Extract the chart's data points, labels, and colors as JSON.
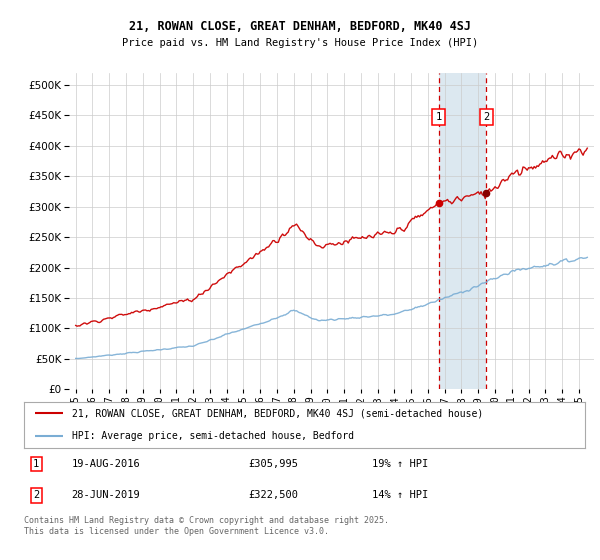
{
  "title1": "21, ROWAN CLOSE, GREAT DENHAM, BEDFORD, MK40 4SJ",
  "title2": "Price paid vs. HM Land Registry's House Price Index (HPI)",
  "legend_label1": "21, ROWAN CLOSE, GREAT DENHAM, BEDFORD, MK40 4SJ (semi-detached house)",
  "legend_label2": "HPI: Average price, semi-detached house, Bedford",
  "sale1_label": "1",
  "sale1_date": "19-AUG-2016",
  "sale1_price": "£305,995",
  "sale1_hpi": "19% ↑ HPI",
  "sale2_label": "2",
  "sale2_date": "28-JUN-2019",
  "sale2_price": "£322,500",
  "sale2_hpi": "14% ↑ HPI",
  "footnote": "Contains HM Land Registry data © Crown copyright and database right 2025.\nThis data is licensed under the Open Government Licence v3.0.",
  "sale1_year": 2016.63,
  "sale1_value": 305995,
  "sale2_year": 2019.49,
  "sale2_value": 322500,
  "color_red": "#cc0000",
  "color_blue": "#7aadd4",
  "color_dashed": "#cc0000",
  "color_shaded": "#dce8f0",
  "bg_color": "#ffffff",
  "grid_color": "#cccccc",
  "ylim_max": 520000,
  "ylim_min": 0
}
